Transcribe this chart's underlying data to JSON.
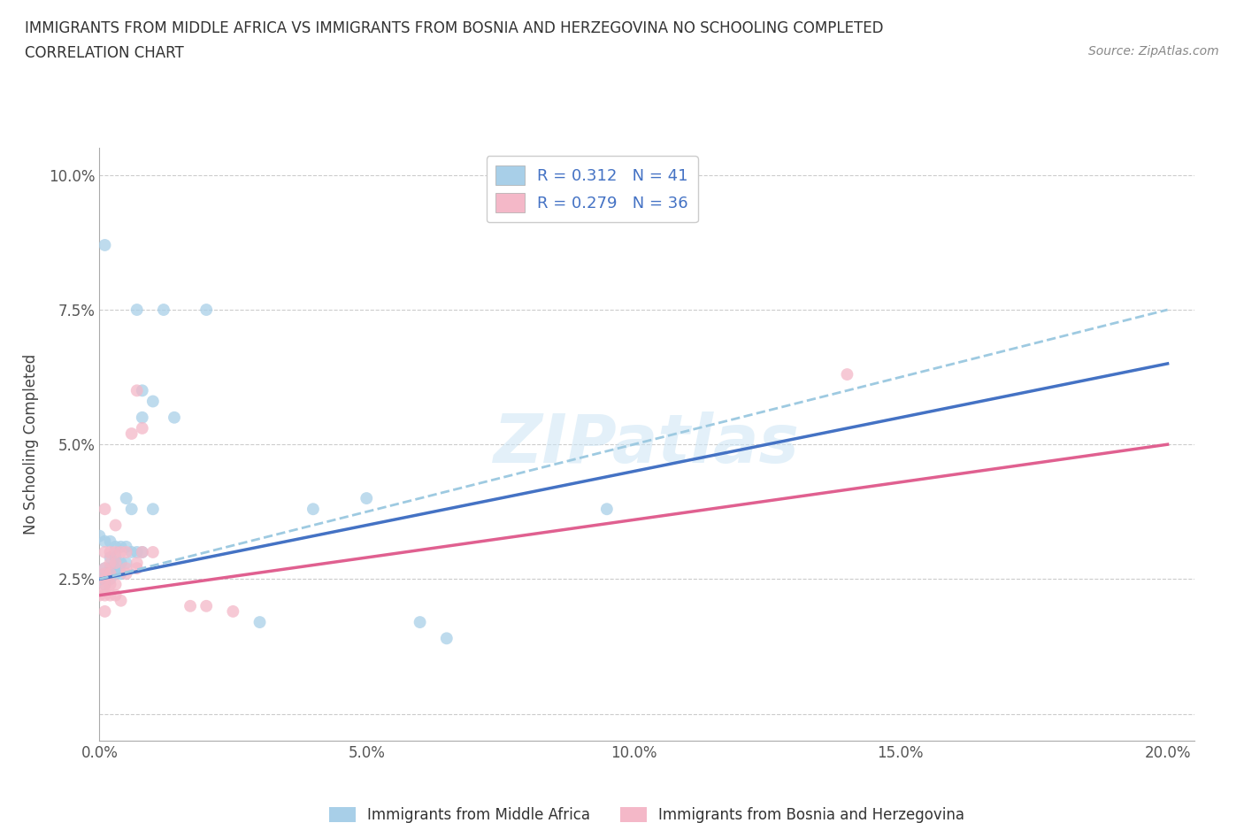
{
  "title_line1": "IMMIGRANTS FROM MIDDLE AFRICA VS IMMIGRANTS FROM BOSNIA AND HERZEGOVINA NO SCHOOLING COMPLETED",
  "title_line2": "CORRELATION CHART",
  "source_text": "Source: ZipAtlas.com",
  "ylabel": "No Schooling Completed",
  "xlim": [
    0.0,
    0.205
  ],
  "ylim": [
    -0.005,
    0.105
  ],
  "xticks": [
    0.0,
    0.05,
    0.1,
    0.15,
    0.2
  ],
  "xticklabels": [
    "0.0%",
    "5.0%",
    "10.0%",
    "15.0%",
    "20.0%"
  ],
  "yticks": [
    0.0,
    0.025,
    0.05,
    0.075,
    0.1
  ],
  "yticklabels": [
    "",
    "2.5%",
    "5.0%",
    "7.5%",
    "10.0%"
  ],
  "color_blue": "#a8cfe8",
  "color_pink": "#f4b8c8",
  "line_blue": "#4472c4",
  "line_pink": "#e06090",
  "line_dashed_color": "#9ecae1",
  "legend_text_color": "#4472c4",
  "R1": 0.312,
  "N1": 41,
  "R2": 0.279,
  "N2": 36,
  "legend_label1": "Immigrants from Middle Africa",
  "legend_label2": "Immigrants from Bosnia and Herzegovina",
  "watermark": "ZIPatlas",
  "blue_line_x0": 0.0,
  "blue_line_y0": 0.025,
  "blue_line_x1": 0.2,
  "blue_line_y1": 0.065,
  "pink_line_x0": 0.0,
  "pink_line_y0": 0.022,
  "pink_line_x1": 0.2,
  "pink_line_y1": 0.05,
  "dashed_line_x0": 0.0,
  "dashed_line_y0": 0.025,
  "dashed_line_x1": 0.2,
  "dashed_line_y1": 0.075,
  "scatter_blue": [
    [
      0.001,
      0.087
    ],
    [
      0.007,
      0.075
    ],
    [
      0.012,
      0.075
    ],
    [
      0.02,
      0.075
    ],
    [
      0.008,
      0.06
    ],
    [
      0.014,
      0.055
    ],
    [
      0.008,
      0.055
    ],
    [
      0.01,
      0.058
    ],
    [
      0.005,
      0.04
    ],
    [
      0.006,
      0.038
    ],
    [
      0.01,
      0.038
    ],
    [
      0.04,
      0.038
    ],
    [
      0.05,
      0.04
    ],
    [
      0.095,
      0.038
    ],
    [
      0.0,
      0.033
    ],
    [
      0.001,
      0.032
    ],
    [
      0.002,
      0.032
    ],
    [
      0.003,
      0.031
    ],
    [
      0.004,
      0.031
    ],
    [
      0.005,
      0.031
    ],
    [
      0.006,
      0.03
    ],
    [
      0.007,
      0.03
    ],
    [
      0.008,
      0.03
    ],
    [
      0.002,
      0.029
    ],
    [
      0.003,
      0.029
    ],
    [
      0.004,
      0.028
    ],
    [
      0.005,
      0.028
    ],
    [
      0.001,
      0.027
    ],
    [
      0.002,
      0.027
    ],
    [
      0.003,
      0.027
    ],
    [
      0.001,
      0.026
    ],
    [
      0.002,
      0.026
    ],
    [
      0.003,
      0.026
    ],
    [
      0.004,
      0.026
    ],
    [
      0.001,
      0.025
    ],
    [
      0.002,
      0.025
    ],
    [
      0.0,
      0.025
    ],
    [
      0.001,
      0.024
    ],
    [
      0.065,
      0.014
    ],
    [
      0.06,
      0.017
    ],
    [
      0.03,
      0.017
    ]
  ],
  "scatter_pink": [
    [
      0.001,
      0.038
    ],
    [
      0.003,
      0.035
    ],
    [
      0.007,
      0.06
    ],
    [
      0.006,
      0.052
    ],
    [
      0.008,
      0.053
    ],
    [
      0.001,
      0.03
    ],
    [
      0.002,
      0.03
    ],
    [
      0.003,
      0.03
    ],
    [
      0.004,
      0.03
    ],
    [
      0.005,
      0.03
    ],
    [
      0.008,
      0.03
    ],
    [
      0.01,
      0.03
    ],
    [
      0.002,
      0.028
    ],
    [
      0.003,
      0.028
    ],
    [
      0.007,
      0.028
    ],
    [
      0.001,
      0.027
    ],
    [
      0.005,
      0.027
    ],
    [
      0.007,
      0.027
    ],
    [
      0.001,
      0.026
    ],
    [
      0.002,
      0.026
    ],
    [
      0.005,
      0.026
    ],
    [
      0.001,
      0.025
    ],
    [
      0.001,
      0.024
    ],
    [
      0.002,
      0.024
    ],
    [
      0.003,
      0.024
    ],
    [
      0.001,
      0.023
    ],
    [
      0.0,
      0.022
    ],
    [
      0.001,
      0.022
    ],
    [
      0.002,
      0.022
    ],
    [
      0.003,
      0.022
    ],
    [
      0.004,
      0.021
    ],
    [
      0.017,
      0.02
    ],
    [
      0.02,
      0.02
    ],
    [
      0.025,
      0.019
    ],
    [
      0.001,
      0.019
    ],
    [
      0.14,
      0.063
    ]
  ]
}
